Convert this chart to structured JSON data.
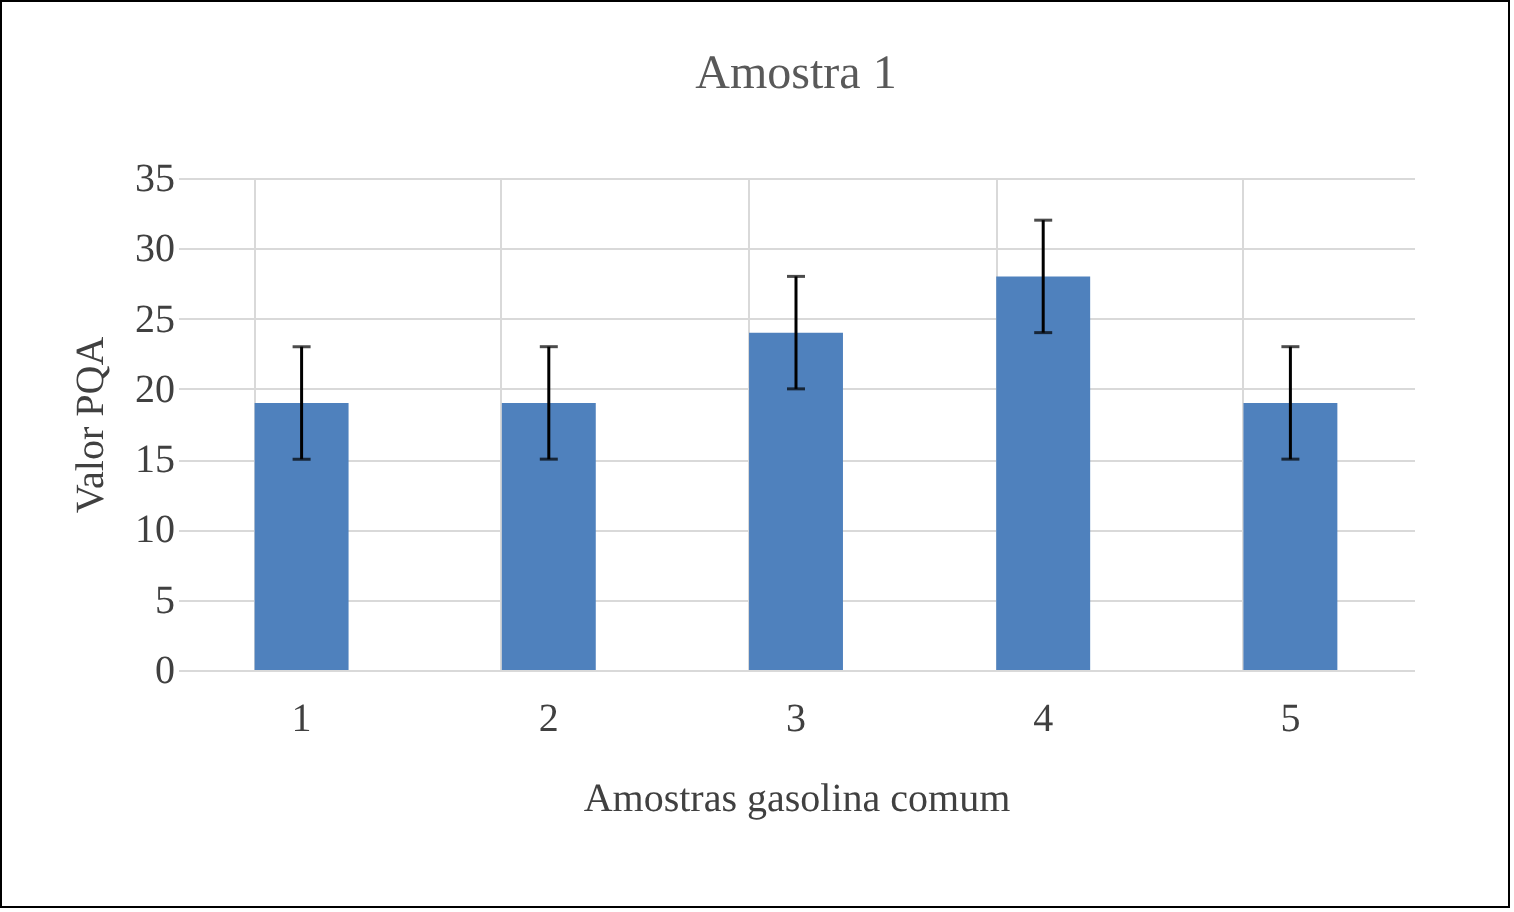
{
  "chart_data": {
    "type": "bar",
    "title": "Amostra 1",
    "xlabel": "Amostras gasolina comum",
    "ylabel": "Valor PQA",
    "categories": [
      "1",
      "2",
      "3",
      "4",
      "5"
    ],
    "values": [
      19,
      19,
      24,
      28,
      19
    ],
    "errors": [
      4,
      4,
      4,
      4,
      4
    ],
    "color": "#4f81bd",
    "ylim": [
      0,
      35
    ],
    "yticks": [
      0,
      5,
      10,
      15,
      20,
      25,
      30,
      35
    ],
    "grid": true
  }
}
